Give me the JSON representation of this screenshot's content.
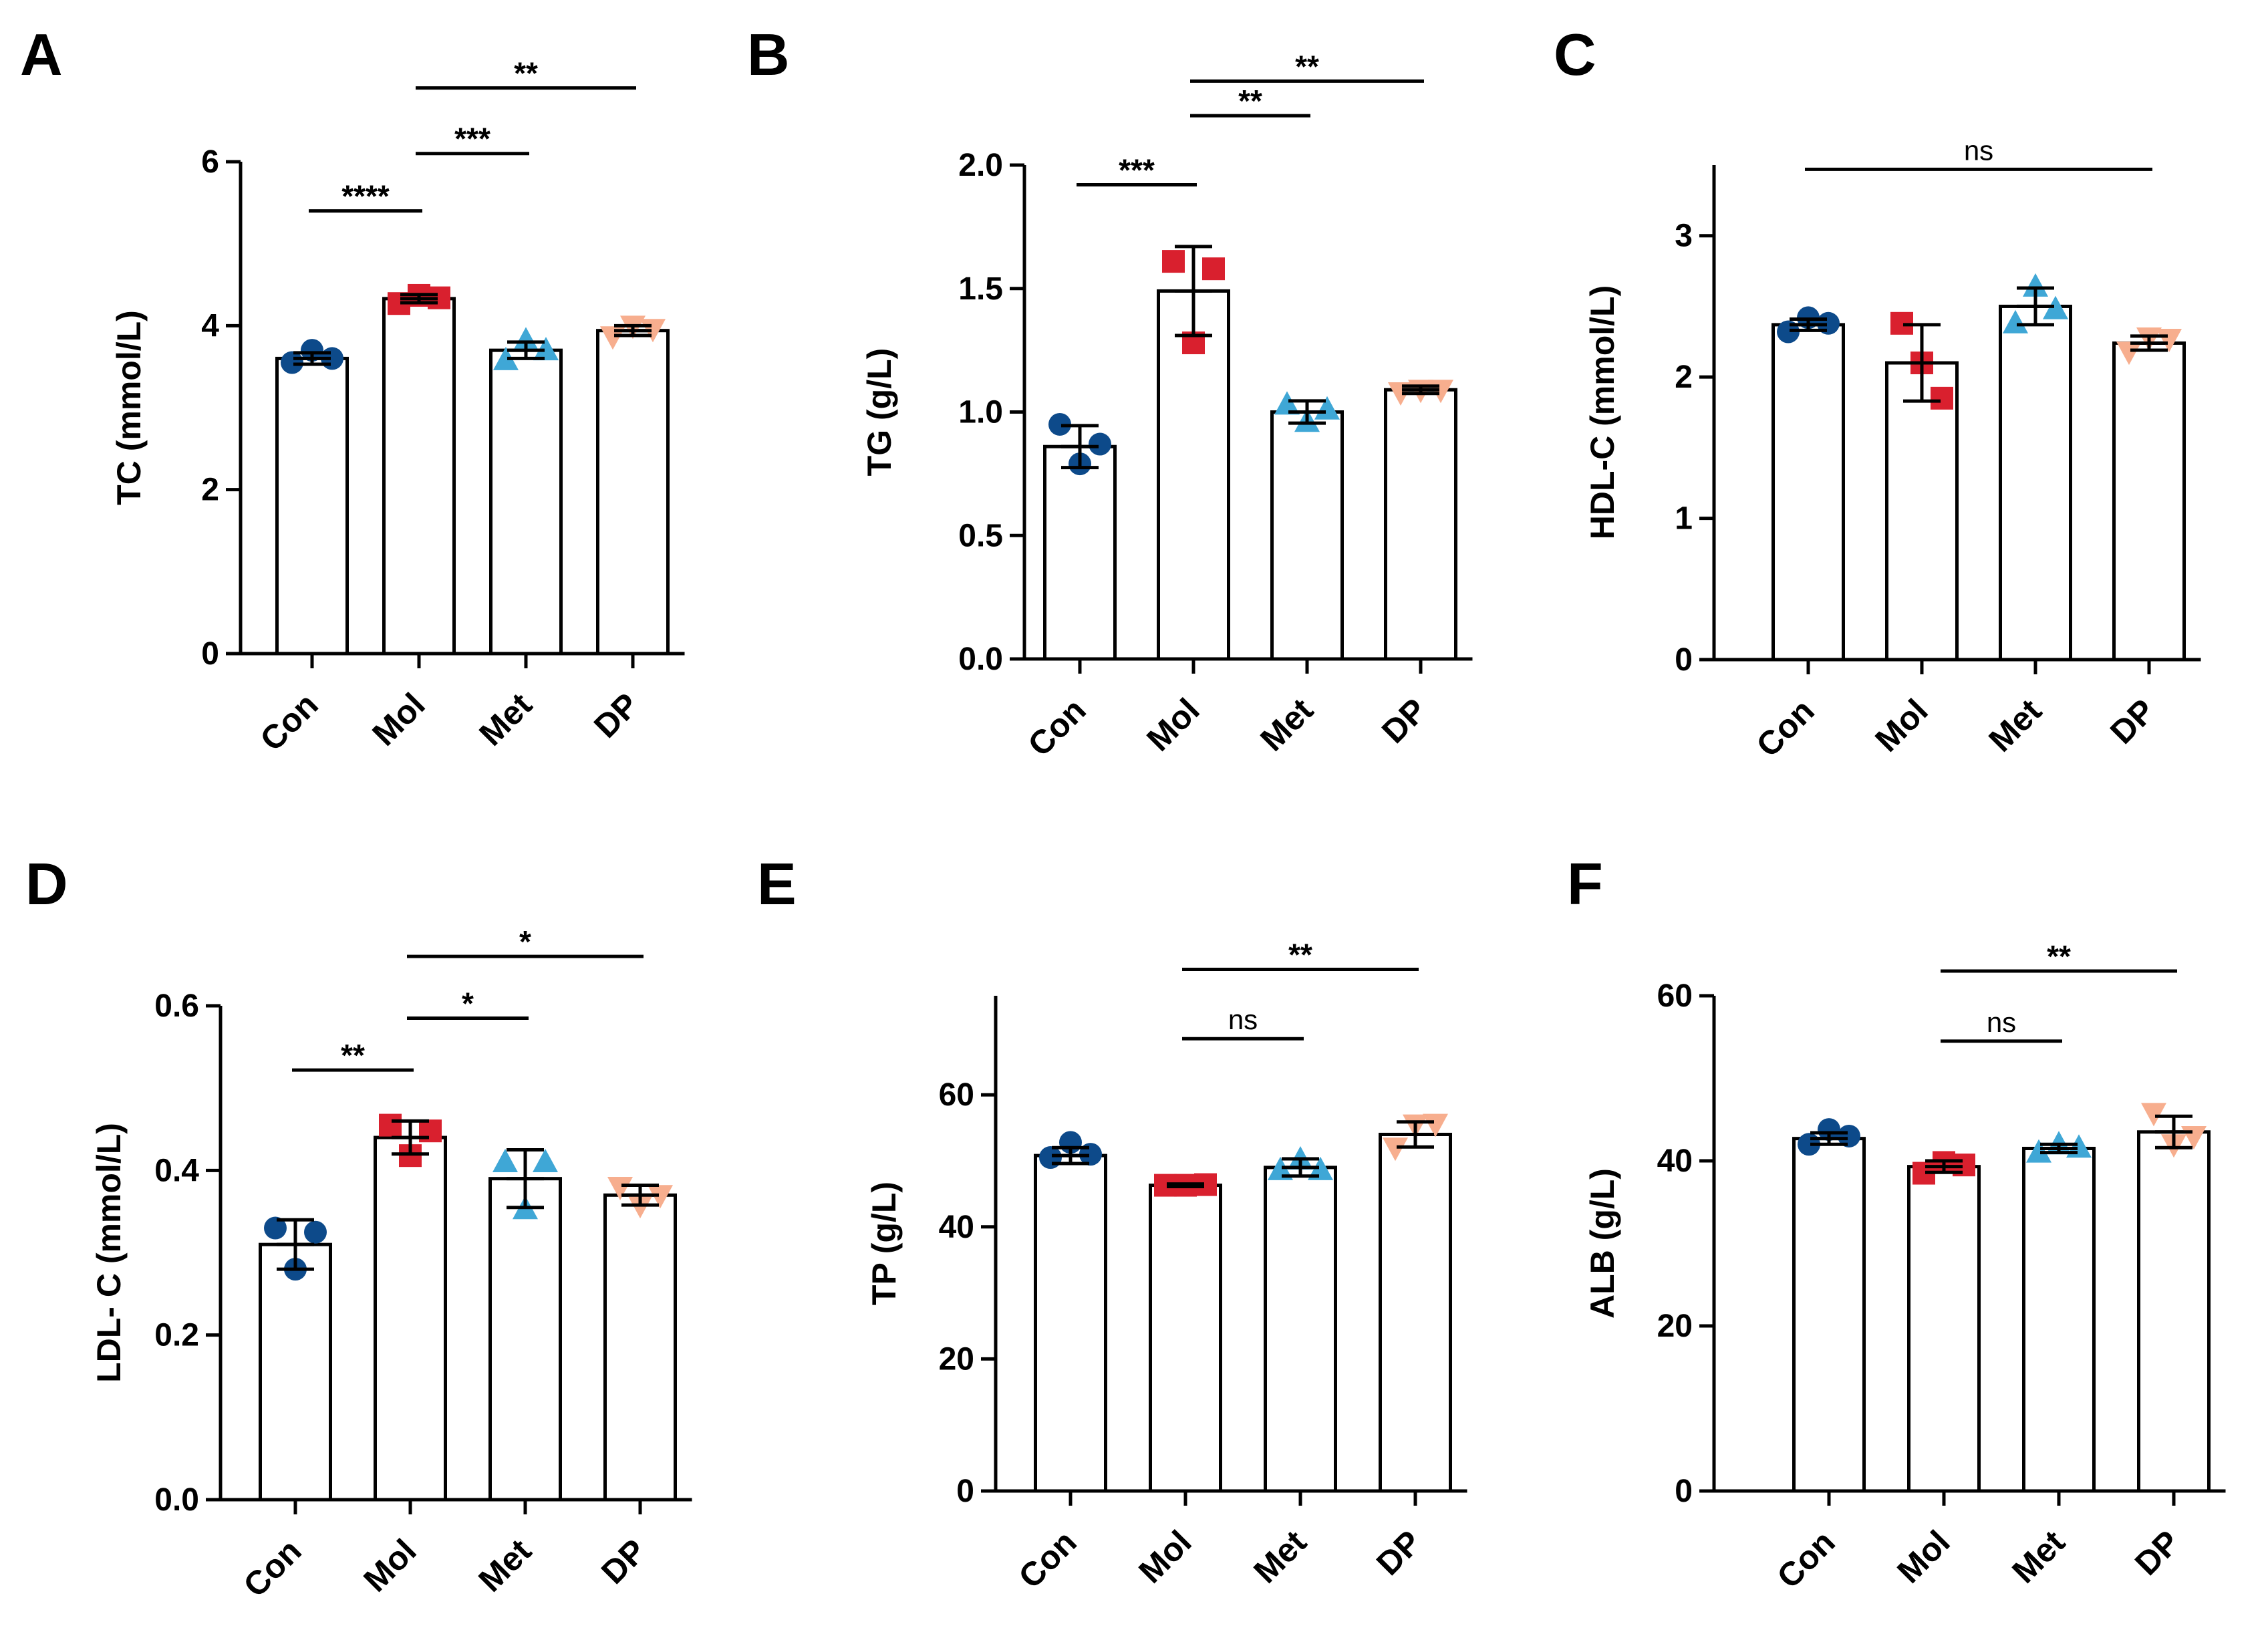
{
  "colors": {
    "Con": "#0d4a8a",
    "Mol": "#d9202e",
    "Met": "#3fa7d6",
    "DP": "#f7ae8e",
    "axis": "#000000",
    "bar_fill": "#ffffff"
  },
  "markers": {
    "Con": "circle",
    "Mol": "square",
    "Met": "triangle-up",
    "DP": "triangle-down"
  },
  "chart_data": [
    {
      "panel": "A",
      "type": "bar",
      "ylabel": "TC (mmol/L)",
      "categories": [
        "Con",
        "Mol",
        "Met",
        "DP"
      ],
      "ylim": [
        0,
        6
      ],
      "yticks": [
        0,
        2,
        4,
        6
      ],
      "ytick_labels": [
        "0",
        "2",
        "4",
        "6"
      ],
      "means": [
        3.6,
        4.33,
        3.7,
        3.94
      ],
      "errors": [
        0.07,
        0.05,
        0.1,
        0.06
      ],
      "points": [
        [
          3.55,
          3.7,
          3.6
        ],
        [
          4.27,
          4.37,
          4.34
        ],
        [
          3.58,
          3.82,
          3.7
        ],
        [
          3.87,
          4.0,
          3.96
        ]
      ],
      "significance": [
        {
          "from": 0,
          "to": 1,
          "label": "****",
          "y": 5.4
        },
        {
          "from": 1,
          "to": 2,
          "label": "***",
          "y": 6.1
        },
        {
          "from": 1,
          "to": 3,
          "label": "**",
          "y": 6.9
        }
      ]
    },
    {
      "panel": "B",
      "type": "bar",
      "ylabel": "TG (g/L)",
      "categories": [
        "Con",
        "Mol",
        "Met",
        "DP"
      ],
      "ylim": [
        0,
        2.0
      ],
      "yticks": [
        0,
        0.5,
        1.0,
        1.5,
        2.0
      ],
      "ytick_labels": [
        "0.0",
        "0.5",
        "1.0",
        "1.5",
        "2.0"
      ],
      "means": [
        0.86,
        1.49,
        1.0,
        1.09
      ],
      "errors": [
        0.085,
        0.18,
        0.045,
        0.015
      ],
      "points": [
        [
          0.95,
          0.79,
          0.87
        ],
        [
          1.61,
          1.28,
          1.58
        ],
        [
          1.03,
          0.96,
          1.01
        ],
        [
          1.08,
          1.09,
          1.09
        ]
      ],
      "significance": [
        {
          "from": 0,
          "to": 1,
          "label": "***",
          "y": 1.92
        },
        {
          "from": 1,
          "to": 2,
          "label": "**",
          "y": 2.2
        },
        {
          "from": 1,
          "to": 3,
          "label": "**",
          "y": 2.34
        }
      ]
    },
    {
      "panel": "C",
      "type": "bar",
      "ylabel": "HDL-C (mmol/L)",
      "categories": [
        "Con",
        "Mol",
        "Met",
        "DP"
      ],
      "ylim": [
        0,
        3.5
      ],
      "yticks": [
        0,
        1,
        2,
        3
      ],
      "ytick_labels": [
        "0",
        "1",
        "2",
        "3"
      ],
      "means": [
        2.37,
        2.1,
        2.5,
        2.24
      ],
      "errors": [
        0.04,
        0.27,
        0.13,
        0.05
      ],
      "points": [
        [
          2.32,
          2.42,
          2.38
        ],
        [
          2.38,
          2.1,
          1.85
        ],
        [
          2.38,
          2.64,
          2.48
        ],
        [
          2.18,
          2.28,
          2.27
        ]
      ],
      "significance": [
        {
          "from": 0,
          "to": 3,
          "label": "ns",
          "y": 3.47
        }
      ]
    },
    {
      "panel": "D",
      "type": "bar",
      "ylabel": "LDL- C (mmol/L)",
      "categories": [
        "Con",
        "Mol",
        "Met",
        "DP"
      ],
      "ylim": [
        0,
        0.6
      ],
      "yticks": [
        0,
        0.2,
        0.4,
        0.6
      ],
      "ytick_labels": [
        "0.0",
        "0.2",
        "0.4",
        "0.6"
      ],
      "means": [
        0.31,
        0.44,
        0.39,
        0.37
      ],
      "errors": [
        0.03,
        0.02,
        0.035,
        0.012
      ],
      "points": [
        [
          0.33,
          0.28,
          0.325
        ],
        [
          0.455,
          0.418,
          0.448
        ],
        [
          0.41,
          0.353,
          0.41
        ],
        [
          0.38,
          0.358,
          0.37
        ]
      ],
      "significance": [
        {
          "from": 0,
          "to": 1,
          "label": "**",
          "y": 0.522
        },
        {
          "from": 1,
          "to": 2,
          "label": "*",
          "y": 0.585
        },
        {
          "from": 1,
          "to": 3,
          "label": "*",
          "y": 0.66
        }
      ]
    },
    {
      "panel": "E",
      "type": "bar",
      "ylabel": "TP (g/L)",
      "categories": [
        "Con",
        "Mol",
        "Met",
        "DP"
      ],
      "ylim": [
        0,
        75
      ],
      "yticks": [
        0,
        20,
        40,
        60
      ],
      "ytick_labels": [
        "0",
        "20",
        "40",
        "60"
      ],
      "means": [
        50.8,
        46.3,
        49.0,
        54.0
      ],
      "errors": [
        1.2,
        0.2,
        1.3,
        1.9
      ],
      "points": [
        [
          50.5,
          52.8,
          51.0
        ],
        [
          46.3,
          46.3,
          46.4
        ],
        [
          48.6,
          50.2,
          48.6
        ],
        [
          52.0,
          55.5,
          55.6
        ]
      ],
      "significance": [
        {
          "from": 1,
          "to": 2,
          "label": "ns",
          "y": 68.5
        },
        {
          "from": 1,
          "to": 3,
          "label": "**",
          "y": 79.0
        }
      ]
    },
    {
      "panel": "F",
      "type": "bar",
      "ylabel": "ALB (g/L)",
      "categories": [
        "Con",
        "Mol",
        "Met",
        "DP"
      ],
      "ylim": [
        0,
        60
      ],
      "yticks": [
        0,
        20,
        40,
        60
      ],
      "ytick_labels": [
        "0",
        "20",
        "40",
        "60"
      ],
      "means": [
        42.7,
        39.3,
        41.5,
        43.5
      ],
      "errors": [
        0.7,
        0.7,
        0.5,
        1.9
      ],
      "points": [
        [
          42.0,
          43.8,
          43.0
        ],
        [
          38.5,
          39.8,
          39.5
        ],
        [
          41.0,
          42.0,
          41.6
        ],
        [
          45.8,
          42.0,
          43.0
        ]
      ],
      "significance": [
        {
          "from": 1,
          "to": 2,
          "label": "ns",
          "y": 54.5
        },
        {
          "from": 1,
          "to": 3,
          "label": "**",
          "y": 63.0
        }
      ]
    }
  ]
}
